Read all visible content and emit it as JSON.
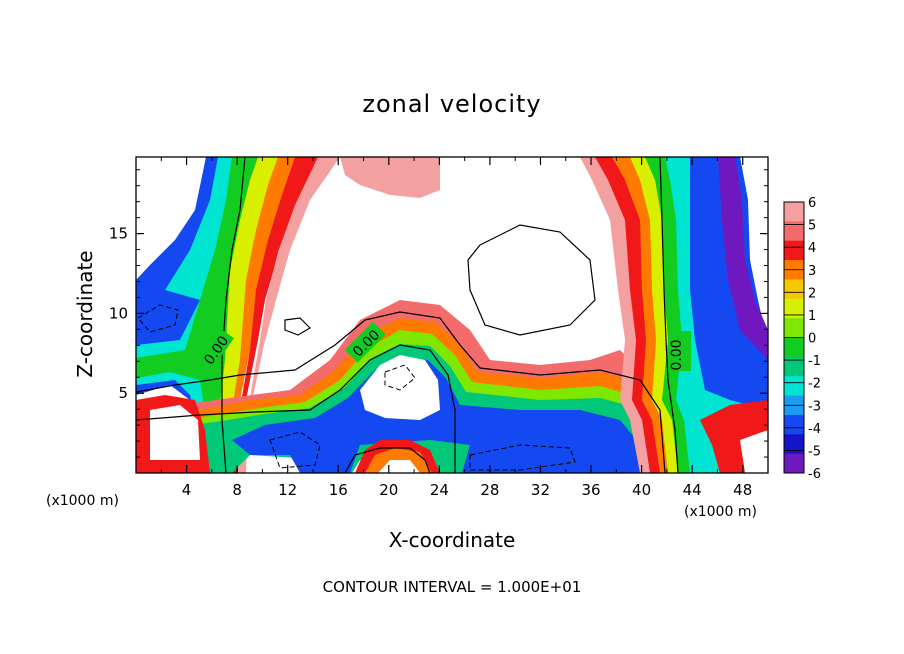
{
  "chart_data": {
    "type": "heatmap",
    "title": "zonal velocity",
    "xlabel": "X-coordinate",
    "ylabel": "Z-coordinate",
    "x_unit": "(x1000 m)",
    "y_unit": "(x1000 m)",
    "xlim": [
      0,
      50
    ],
    "ylim": [
      0,
      19.8
    ],
    "x_ticks": [
      "4",
      "8",
      "12",
      "16",
      "20",
      "24",
      "28",
      "32",
      "36",
      "40",
      "44",
      "48"
    ],
    "y_ticks": [
      "5",
      "10",
      "15"
    ],
    "colorbar": {
      "min": -6,
      "max": 6,
      "ticks": [
        "6",
        "5",
        "4",
        "3",
        "2",
        "1",
        "0",
        "-1",
        "-2",
        "-3",
        "-4",
        "-5",
        "-6"
      ],
      "colors": [
        "#f5a0a0",
        "#f36b6b",
        "#f01818",
        "#ff7a00",
        "#f5c800",
        "#d8f000",
        "#7ee800",
        "#12cc22",
        "#00c878",
        "#00e5d2",
        "#1c9cf0",
        "#1448f0",
        "#1414c8",
        "#7018c0"
      ]
    },
    "contour_labels": [
      "0.00",
      "0.00",
      "0.00"
    ],
    "footer": "CONTOUR INTERVAL = 1.000E+01",
    "grid": false
  },
  "colors": {
    "background": "#ffffff",
    "frame": "#000000"
  }
}
